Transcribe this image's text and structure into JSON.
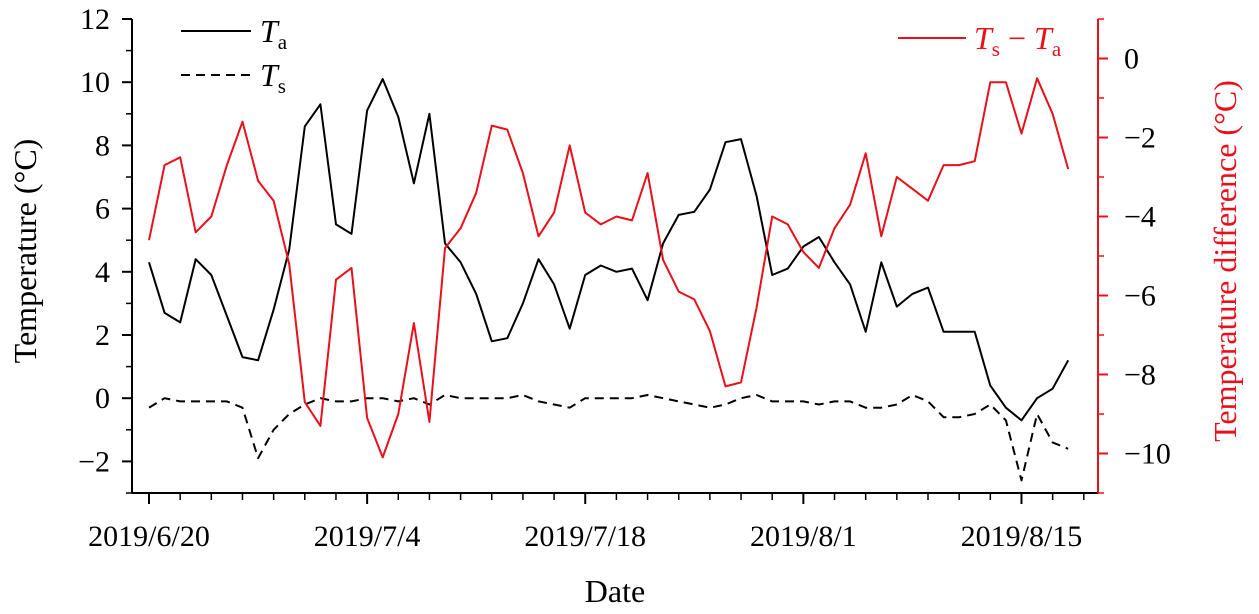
{
  "chart_data": {
    "type": "line",
    "x_tick_labels": [
      "2019/6/20",
      "2019/7/4",
      "2019/7/18",
      "2019/8/1",
      "2019/8/15"
    ],
    "xlabel": "Date",
    "ylabel_left": "Temperature (°C)",
    "ylabel_right": "Temperature difference (°C)",
    "ylim_left": [
      -3,
      12
    ],
    "ylim_right": [
      -11,
      1
    ],
    "y_ticks_left": [
      -2,
      0,
      2,
      4,
      6,
      8,
      10,
      12
    ],
    "y_ticks_right": [
      -10,
      -8,
      -6,
      -4,
      -2,
      0
    ],
    "y_tick_labels_left": [
      "−2",
      "0",
      "2",
      "4",
      "6",
      "8",
      "10",
      "12"
    ],
    "y_tick_labels_right": [
      "−10",
      "−8",
      "−6",
      "−4",
      "−2",
      "0"
    ],
    "x_start": "2019-06-20",
    "x_end": "2019-08-20",
    "legend_left": {
      "position": "top-left"
    },
    "legend_right": {
      "position": "top-right",
      "minus": " − "
    },
    "series": [
      {
        "name": "T",
        "name_sub": "a",
        "axis": "left",
        "color": "#000000",
        "style": "solid",
        "values": [
          4.3,
          2.7,
          2.4,
          4.4,
          3.9,
          2.6,
          1.3,
          1.2,
          2.8,
          4.7,
          8.6,
          9.3,
          5.5,
          5.2,
          9.1,
          10.1,
          8.9,
          6.8,
          9.0,
          4.9,
          4.3,
          3.3,
          1.8,
          1.9,
          3.0,
          4.4,
          3.6,
          2.2,
          3.9,
          4.2,
          4.0,
          4.1,
          3.1,
          4.9,
          5.8,
          5.9,
          6.6,
          8.1,
          8.2,
          6.4,
          3.9,
          4.1,
          4.8,
          5.1,
          4.3,
          3.6,
          2.1,
          4.3,
          2.9,
          3.3,
          3.5,
          2.1,
          2.1,
          2.1,
          0.4,
          -0.3,
          -0.7,
          0.0,
          0.3,
          1.2
        ]
      },
      {
        "name": "T",
        "name_sub": "s",
        "axis": "left",
        "color": "#000000",
        "style": "dashed",
        "values": [
          -0.3,
          0.0,
          -0.1,
          -0.1,
          -0.1,
          -0.1,
          -0.3,
          -1.9,
          -1.0,
          -0.5,
          -0.2,
          0.0,
          -0.1,
          -0.1,
          0.0,
          0.0,
          -0.1,
          0.0,
          -0.2,
          0.1,
          0.0,
          0.0,
          0.0,
          0.0,
          0.1,
          -0.1,
          -0.2,
          -0.3,
          0.0,
          0.0,
          0.0,
          0.0,
          0.1,
          0.0,
          -0.1,
          -0.2,
          -0.3,
          -0.2,
          0.0,
          0.1,
          -0.1,
          -0.1,
          -0.1,
          -0.2,
          -0.1,
          -0.1,
          -0.3,
          -0.3,
          -0.2,
          0.1,
          -0.1,
          -0.6,
          -0.6,
          -0.5,
          -0.2,
          -0.7,
          -2.6,
          -0.5,
          -1.4,
          -1.6
        ]
      },
      {
        "name": "T",
        "name_sub": "s",
        "name_sub2": "a",
        "axis": "right",
        "color": "#e8101a",
        "style": "solid",
        "values": [
          -4.6,
          -2.7,
          -2.5,
          -4.4,
          -4.0,
          -2.7,
          -1.6,
          -3.1,
          -3.6,
          -5.2,
          -8.7,
          -9.3,
          -5.6,
          -5.3,
          -9.1,
          -10.1,
          -9.0,
          -6.7,
          -9.2,
          -4.8,
          -4.3,
          -3.4,
          -1.7,
          -1.8,
          -2.9,
          -4.5,
          -3.9,
          -2.2,
          -3.9,
          -4.2,
          -4.0,
          -4.1,
          -2.9,
          -5.1,
          -5.9,
          -6.1,
          -6.9,
          -8.3,
          -8.2,
          -6.3,
          -4.0,
          -4.2,
          -4.9,
          -5.3,
          -4.3,
          -3.7,
          -2.4,
          -4.5,
          -3.0,
          -3.3,
          -3.6,
          -2.7,
          -2.7,
          -2.6,
          -0.6,
          -0.6,
          -1.9,
          -0.5,
          -1.4,
          -2.8
        ]
      }
    ]
  }
}
